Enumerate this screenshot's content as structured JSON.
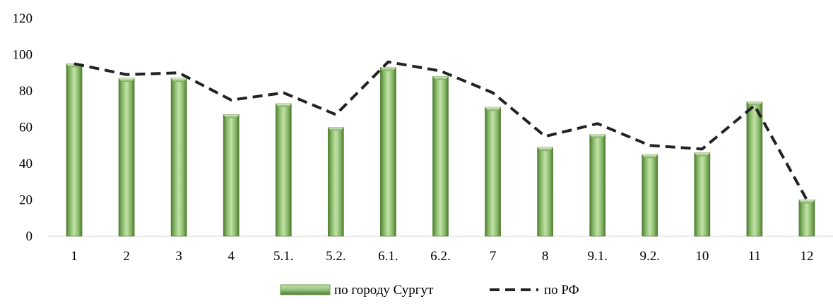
{
  "chart_data": {
    "type": "bar",
    "categories": [
      "1",
      "2",
      "3",
      "4",
      "5.1.",
      "5.2.",
      "6.1.",
      "6.2.",
      "7",
      "8",
      "9.1.",
      "9.2.",
      "10",
      "11",
      "12"
    ],
    "series": [
      {
        "name": "по городу Сургут",
        "type": "bar",
        "color": "#93c47d",
        "values": [
          95,
          87,
          87,
          67,
          73,
          60,
          93,
          88,
          71,
          49,
          56,
          45,
          46,
          74,
          20
        ]
      },
      {
        "name": "по РФ",
        "type": "line",
        "style": "dashed",
        "color": "#222222",
        "values": [
          95,
          89,
          90,
          75,
          79,
          67,
          96,
          91,
          79,
          55,
          62,
          50,
          48,
          72,
          20
        ]
      }
    ],
    "ylim": [
      0,
      120
    ],
    "yticks": [
      0,
      20,
      40,
      60,
      80,
      100,
      120
    ],
    "title": "",
    "xlabel": "",
    "ylabel": "",
    "grid": false,
    "legend_position": "bottom-center"
  }
}
